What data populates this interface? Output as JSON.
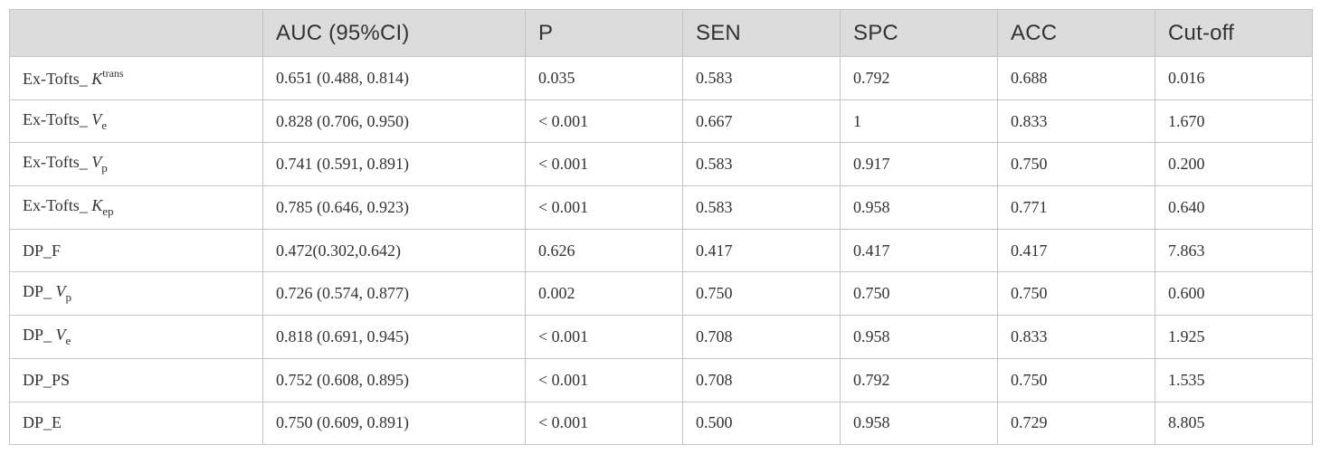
{
  "table": {
    "headers": [
      "",
      "AUC (95%CI)",
      "P",
      "SEN",
      "SPC",
      "ACC",
      "Cut-off"
    ],
    "rows": [
      {
        "label": {
          "prefix": "Ex-Tofts_ ",
          "var": "K",
          "sup": "trans",
          "sub": ""
        },
        "cells": [
          "0.651 (0.488, 0.814)",
          "0.035",
          "0.583",
          "0.792",
          "0.688",
          "0.016"
        ]
      },
      {
        "label": {
          "prefix": "Ex-Tofts_ ",
          "var": "V",
          "sup": "",
          "sub": "e"
        },
        "cells": [
          "0.828 (0.706, 0.950)",
          "< 0.001",
          "0.667",
          "1",
          "0.833",
          "1.670"
        ]
      },
      {
        "label": {
          "prefix": "Ex-Tofts_ ",
          "var": "V",
          "sup": "",
          "sub": "p"
        },
        "cells": [
          "0.741 (0.591, 0.891)",
          "< 0.001",
          "0.583",
          "0.917",
          "0.750",
          "0.200"
        ]
      },
      {
        "label": {
          "prefix": "Ex-Tofts_ ",
          "var": "K",
          "sup": "",
          "sub": "ep"
        },
        "cells": [
          "0.785 (0.646, 0.923)",
          "< 0.001",
          "0.583",
          "0.958",
          "0.771",
          "0.640"
        ]
      },
      {
        "label": {
          "prefix": "DP_F",
          "var": "",
          "sup": "",
          "sub": ""
        },
        "cells": [
          "0.472(0.302,0.642)",
          "0.626",
          "0.417",
          "0.417",
          "0.417",
          "7.863"
        ]
      },
      {
        "label": {
          "prefix": "DP_ ",
          "var": "V",
          "sup": "",
          "sub": "p"
        },
        "cells": [
          "0.726 (0.574, 0.877)",
          "0.002",
          "0.750",
          "0.750",
          "0.750",
          "0.600"
        ]
      },
      {
        "label": {
          "prefix": "DP_ ",
          "var": "V",
          "sup": "",
          "sub": "e"
        },
        "cells": [
          "0.818 (0.691, 0.945)",
          "< 0.001",
          "0.708",
          "0.958",
          "0.833",
          "1.925"
        ]
      },
      {
        "label": {
          "prefix": "DP_PS",
          "var": "",
          "sup": "",
          "sub": ""
        },
        "cells": [
          "0.752 (0.608, 0.895)",
          "< 0.001",
          "0.708",
          "0.792",
          "0.750",
          "1.535"
        ]
      },
      {
        "label": {
          "prefix": "DP_E",
          "var": "",
          "sup": "",
          "sub": ""
        },
        "cells": [
          "0.750 (0.609, 0.891)",
          "< 0.001",
          "0.500",
          "0.958",
          "0.729",
          "8.805"
        ]
      }
    ]
  }
}
